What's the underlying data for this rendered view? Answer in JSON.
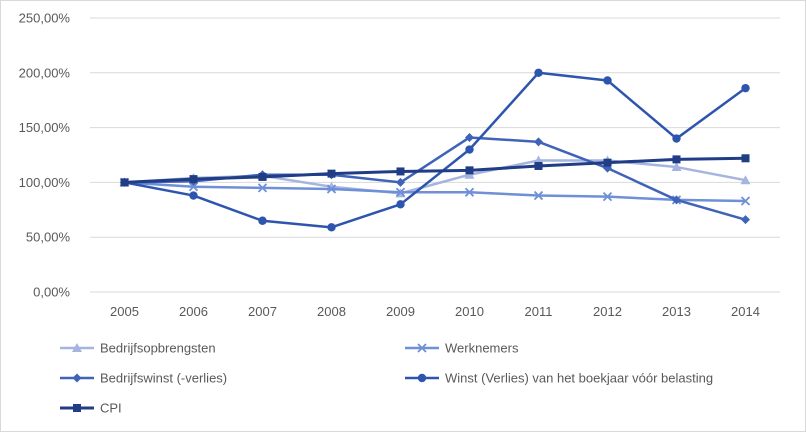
{
  "chart_data": {
    "type": "line",
    "categories": [
      "2005",
      "2006",
      "2007",
      "2008",
      "2009",
      "2010",
      "2011",
      "2012",
      "2013",
      "2014"
    ],
    "y_ticks": [
      "0,00%",
      "50,00%",
      "100,00%",
      "150,00%",
      "200,00%",
      "250,00%"
    ],
    "ylim": [
      0,
      250
    ],
    "grid": "horizontal",
    "legend_position": "bottom",
    "series": [
      {
        "name": "Bedrijfsopbrengsten",
        "marker": "triangle",
        "color": "#a5b4e0",
        "values": [
          100,
          104,
          106,
          96,
          90,
          107,
          120,
          120,
          114,
          102
        ]
      },
      {
        "name": "Werknemers",
        "marker": "cross",
        "color": "#6f8fd6",
        "values": [
          100,
          96,
          95,
          94,
          91,
          91,
          88,
          87,
          84,
          83
        ]
      },
      {
        "name": "Bedrijfswinst (-verlies)",
        "marker": "diamond",
        "color": "#3f63b8",
        "values": [
          100,
          101,
          107,
          107,
          100,
          141,
          137,
          113,
          84,
          66
        ]
      },
      {
        "name": "Winst (Verlies) van het boekjaar vóór belasting",
        "marker": "circle",
        "color": "#2e55ad",
        "values": [
          100,
          88,
          65,
          59,
          80,
          130,
          200,
          193,
          140,
          186
        ]
      },
      {
        "name": "CPI",
        "marker": "square",
        "color": "#203d85",
        "values": [
          100,
          103,
          105,
          108,
          110,
          111,
          115,
          118,
          121,
          122
        ]
      }
    ]
  }
}
